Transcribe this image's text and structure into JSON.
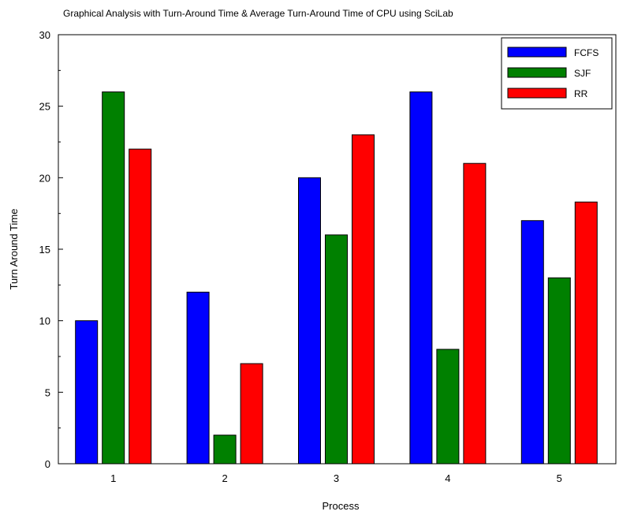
{
  "chart_data": {
    "type": "bar",
    "title": "Graphical Analysis with Turn-Around Time & Average Turn-Around Time of CPU using SciLab",
    "xlabel": "Process",
    "ylabel": "Turn Around Time",
    "categories": [
      "1",
      "2",
      "3",
      "4",
      "5"
    ],
    "ylim": [
      0,
      30
    ],
    "yticks": [
      0,
      5,
      10,
      15,
      20,
      25,
      30
    ],
    "series": [
      {
        "name": "FCFS",
        "color": "#0000ff",
        "values": [
          10,
          12,
          20,
          26,
          17
        ]
      },
      {
        "name": "SJF",
        "color": "#008000",
        "values": [
          26,
          2,
          16,
          8,
          13
        ]
      },
      {
        "name": "RR",
        "color": "#ff0000",
        "values": [
          22,
          7,
          23,
          21,
          18.3
        ]
      }
    ],
    "legend_position": "top-right",
    "grid": false
  }
}
